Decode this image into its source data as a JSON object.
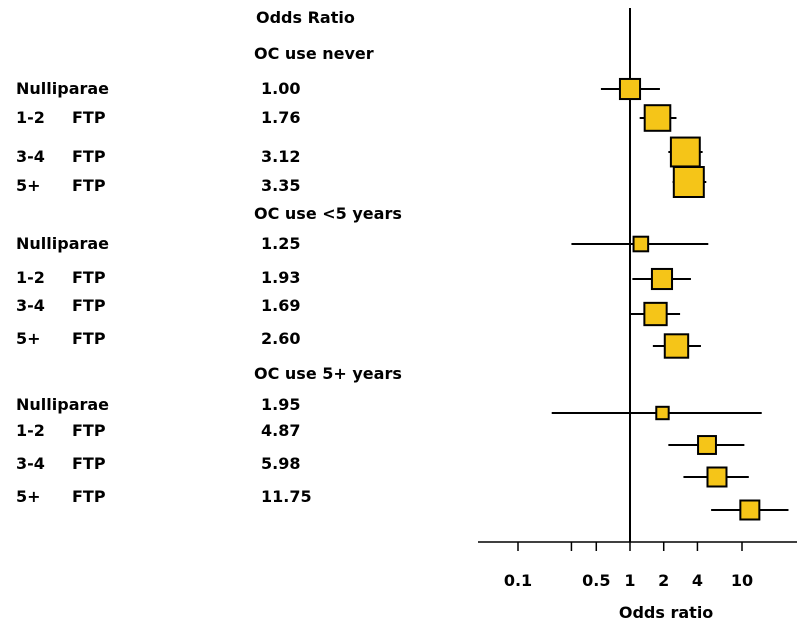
{
  "chart_data": {
    "type": "forest",
    "header": "Odds Ratio",
    "xlabel": "Odds ratio",
    "x_scale": "log",
    "xlim": [
      0.08,
      25
    ],
    "reference_line": 1,
    "x_ticks": [
      0.1,
      0.5,
      1,
      2,
      4,
      10
    ],
    "x_ticklabels": [
      "0.1",
      "0.5",
      "1",
      "2",
      "4",
      "10"
    ],
    "x_minor_ticks": [
      0.3
    ],
    "marker_color": "#F5C518",
    "groups": [
      {
        "title": "OC use never",
        "rows": [
          {
            "label": "Nulliparae",
            "sublabel": "",
            "or_text": "1.00",
            "or": 1.0,
            "ci": [
              0.55,
              1.85
            ],
            "weight": 0.55
          },
          {
            "label": "1-2",
            "sublabel": "FTP",
            "or_text": "1.76",
            "or": 1.76,
            "ci": [
              1.22,
              2.6
            ],
            "weight": 0.8
          },
          {
            "label": "3-4",
            "sublabel": "FTP",
            "or_text": "3.12",
            "or": 3.12,
            "ci": [
              2.2,
              4.45
            ],
            "weight": 0.95
          },
          {
            "label": "5+",
            "sublabel": "FTP",
            "or_text": "3.35",
            "or": 3.35,
            "ci": [
              2.4,
              4.8
            ],
            "weight": 1.0
          }
        ]
      },
      {
        "title": "OC use <5 years",
        "rows": [
          {
            "label": "Nulliparae",
            "sublabel": "",
            "or_text": "1.25",
            "or": 1.25,
            "ci": [
              0.3,
              5.0
            ],
            "weight": 0.3
          },
          {
            "label": "1-2",
            "sublabel": "FTP",
            "or_text": "1.93",
            "or": 1.93,
            "ci": [
              1.05,
              3.5
            ],
            "weight": 0.55
          },
          {
            "label": "3-4",
            "sublabel": "FTP",
            "or_text": "1.69",
            "or": 1.69,
            "ci": [
              1.0,
              2.8
            ],
            "weight": 0.65
          },
          {
            "label": "5+",
            "sublabel": "FTP",
            "or_text": "2.60",
            "or": 2.6,
            "ci": [
              1.6,
              4.3
            ],
            "weight": 0.7
          }
        ]
      },
      {
        "title": "OC use 5+ years",
        "rows": [
          {
            "label": "Nulliparae",
            "sublabel": "",
            "or_text": "1.95",
            "or": 1.95,
            "ci": [
              0.2,
              15.0
            ],
            "weight": 0.2
          },
          {
            "label": "1-2",
            "sublabel": "FTP",
            "or_text": "4.87",
            "or": 4.87,
            "ci": [
              2.2,
              10.5
            ],
            "weight": 0.45
          },
          {
            "label": "3-4",
            "sublabel": "FTP",
            "or_text": "5.98",
            "or": 5.98,
            "ci": [
              3.0,
              11.5
            ],
            "weight": 0.5
          },
          {
            "label": "5+",
            "sublabel": "FTP",
            "or_text": "11.75",
            "or": 11.75,
            "ci": [
              5.3,
              26.0
            ],
            "weight": 0.5
          }
        ]
      }
    ]
  }
}
